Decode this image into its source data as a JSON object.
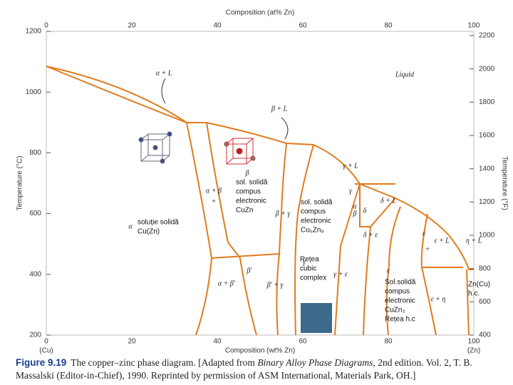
{
  "top_axis": {
    "title": "Composition (at% Zn)",
    "ticks": [
      0,
      20,
      40,
      60,
      80,
      100
    ]
  },
  "bottom_axis": {
    "title": "Composition (wt% Zn)",
    "ticks": [
      0,
      20,
      40,
      60,
      80,
      100
    ],
    "end_labels": [
      "(Cu)",
      "(Zn)"
    ]
  },
  "left_axis": {
    "title": "Temperature (°C)",
    "ticks": [
      1200,
      1000,
      800,
      600,
      400,
      200
    ]
  },
  "right_axis": {
    "title": "Temperature (°F)",
    "ticks": [
      2200,
      2000,
      1800,
      1600,
      1400,
      1200,
      1000,
      800,
      600,
      400
    ]
  },
  "phase_labels": [
    "α + L",
    "Liquid",
    "β + L",
    "γ + L",
    "δ + L",
    "γ",
    "δ",
    "δ + ε",
    "ε",
    "ε + L",
    "η + L",
    "α",
    "α + β",
    "β",
    "β + γ",
    "α + β′",
    "β′",
    "β′ + γ",
    "γ",
    "γ + ε",
    "ε",
    "ε + η",
    "α",
    "β",
    "+",
    "+"
  ],
  "annotations": [
    [
      "soluție solidă",
      "Cu(Zn)"
    ],
    [
      "sol. solidă",
      "compus",
      "electronic",
      "CuZn"
    ],
    [
      "sol. solidă",
      "compus",
      "electronic",
      "Cu₅Zn₈"
    ],
    [
      "Rețea",
      "cubic",
      "complex"
    ],
    [
      "Sol.solidă",
      "compus",
      "electronic",
      "CuZn₃",
      "Rețea h.c"
    ],
    [
      "Zn(Cu)",
      "h.c."
    ]
  ],
  "caption": {
    "number": "Figure 9.19",
    "text": "The copper–zinc phase diagram. [Adapted from",
    "book": "Binary Alloy Phase Diagrams,",
    "rest": "2nd edition. Vol. 2, T. B. Massalski (Editor-in-Chief), 1990. Reprinted by permission of ASM International, Materials Park, OH.]"
  }
}
